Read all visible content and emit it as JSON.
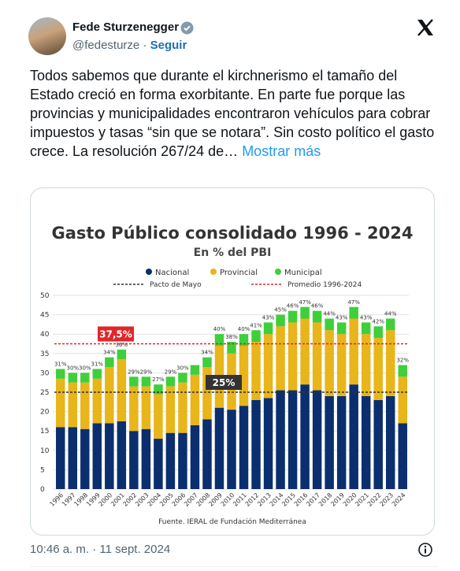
{
  "header": {
    "name": "Fede Sturzenegger",
    "handle": "@fedesturze",
    "separator": "·",
    "follow": "Seguir"
  },
  "body": {
    "text": "Todos sabemos que durante el kirchnerismo el tamaño del Estado creció en forma exorbitante. En parte fue porque las provincias y municipalidades encontraron vehículos para cobrar impuestos y tasas “sin que se notara”. Sin costo político el gasto crece. La resolución 267/24 de…",
    "more": "Mostrar más"
  },
  "chart_data": {
    "type": "stacked_bar",
    "title": "Gasto Público consolidado 1996 - 2024",
    "subtitle": "En % del PBI",
    "source": "Fuente. IERAL de Fundación Mediterránea",
    "categories": [
      "1996",
      "1997",
      "1998",
      "1999",
      "2000",
      "2001",
      "2002",
      "2003",
      "2004",
      "2005",
      "2006",
      "2007",
      "2008",
      "2009",
      "2010",
      "2011",
      "2012",
      "2013",
      "2014",
      "2015",
      "2016",
      "2017",
      "2018",
      "2019",
      "2020",
      "2021",
      "2022",
      "2023",
      "2024"
    ],
    "series": [
      {
        "name": "Nacional",
        "color": "#0b2f6e",
        "values": [
          16,
          16,
          15.5,
          17,
          17,
          17.5,
          15,
          15.5,
          13,
          14.5,
          14.5,
          16.5,
          18,
          21,
          20.5,
          21.5,
          23,
          23.5,
          25.5,
          25.5,
          27,
          25.5,
          24,
          24,
          27,
          24,
          23,
          24,
          17
        ]
      },
      {
        "name": "Provincial",
        "color": "#e8b51a",
        "values": [
          12.5,
          11.5,
          12,
          11.5,
          14.5,
          16,
          11.5,
          11,
          11.5,
          12,
          13,
          13,
          13.5,
          16,
          14.5,
          15.5,
          15,
          16.5,
          16.5,
          17.5,
          17,
          17.5,
          17,
          16,
          17,
          16,
          16,
          17,
          12
        ]
      },
      {
        "name": "Municipal",
        "color": "#3fcf3a",
        "values": [
          2.5,
          2.5,
          2.5,
          2.5,
          2.5,
          2.5,
          2.5,
          2.5,
          2.5,
          2.5,
          2.5,
          2.5,
          2.5,
          3,
          3,
          3,
          3,
          3,
          3,
          3,
          3,
          3,
          3,
          3,
          3,
          3,
          3,
          3,
          3
        ]
      }
    ],
    "total_labels": [
      "31%",
      "30%",
      "30%",
      "31%",
      "34%",
      "36%",
      "29%",
      "29%",
      "27%",
      "29%",
      "30%",
      null,
      "34%",
      "40%",
      "38%",
      "40%",
      "41%",
      "43%",
      "45%",
      "46%",
      "47%",
      "46%",
      "44%",
      "43%",
      "47%",
      "43%",
      "42%",
      "44%",
      "32%"
    ],
    "reference_lines": [
      {
        "name": "Pacto de Mayo",
        "value": 25,
        "label": "25%",
        "color": "#333333"
      },
      {
        "name": "Promedio 1996-2024",
        "value": 37.5,
        "label": "37,5%",
        "color": "#e0262b"
      }
    ],
    "ylim": [
      0,
      50
    ],
    "yticks": [
      0,
      5,
      10,
      15,
      20,
      25,
      30,
      35,
      40,
      45,
      50
    ],
    "grid": true
  },
  "footer": {
    "timestamp": "10:46 a. m. · 11 sept. 2024"
  }
}
